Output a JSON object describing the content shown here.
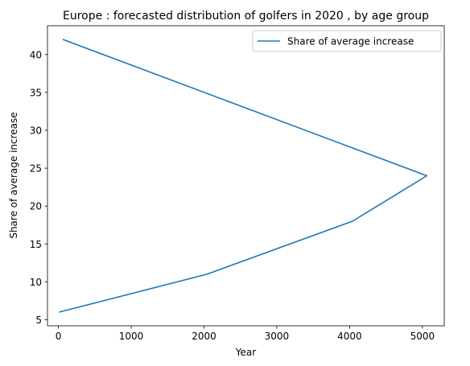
{
  "chart_data": {
    "type": "line",
    "title": "Europe : forecasted distribution of golfers in 2020 , by age group",
    "xlabel": "Year",
    "ylabel": "Share of average increase",
    "xlim": [
      -150,
      5300
    ],
    "ylim": [
      4.2,
      43.8
    ],
    "xticks": [
      0,
      1000,
      2000,
      3000,
      4000,
      5000
    ],
    "yticks": [
      5,
      10,
      15,
      20,
      25,
      30,
      35,
      40
    ],
    "grid": false,
    "legend_position": "top-right",
    "series": [
      {
        "name": "Share of average increase",
        "color": "#1f77b4",
        "points": [
          {
            "x": 60,
            "y": 42
          },
          {
            "x": 5060,
            "y": 24
          },
          {
            "x": 4040,
            "y": 18
          },
          {
            "x": 2040,
            "y": 11
          },
          {
            "x": 10,
            "y": 6
          }
        ]
      }
    ]
  }
}
